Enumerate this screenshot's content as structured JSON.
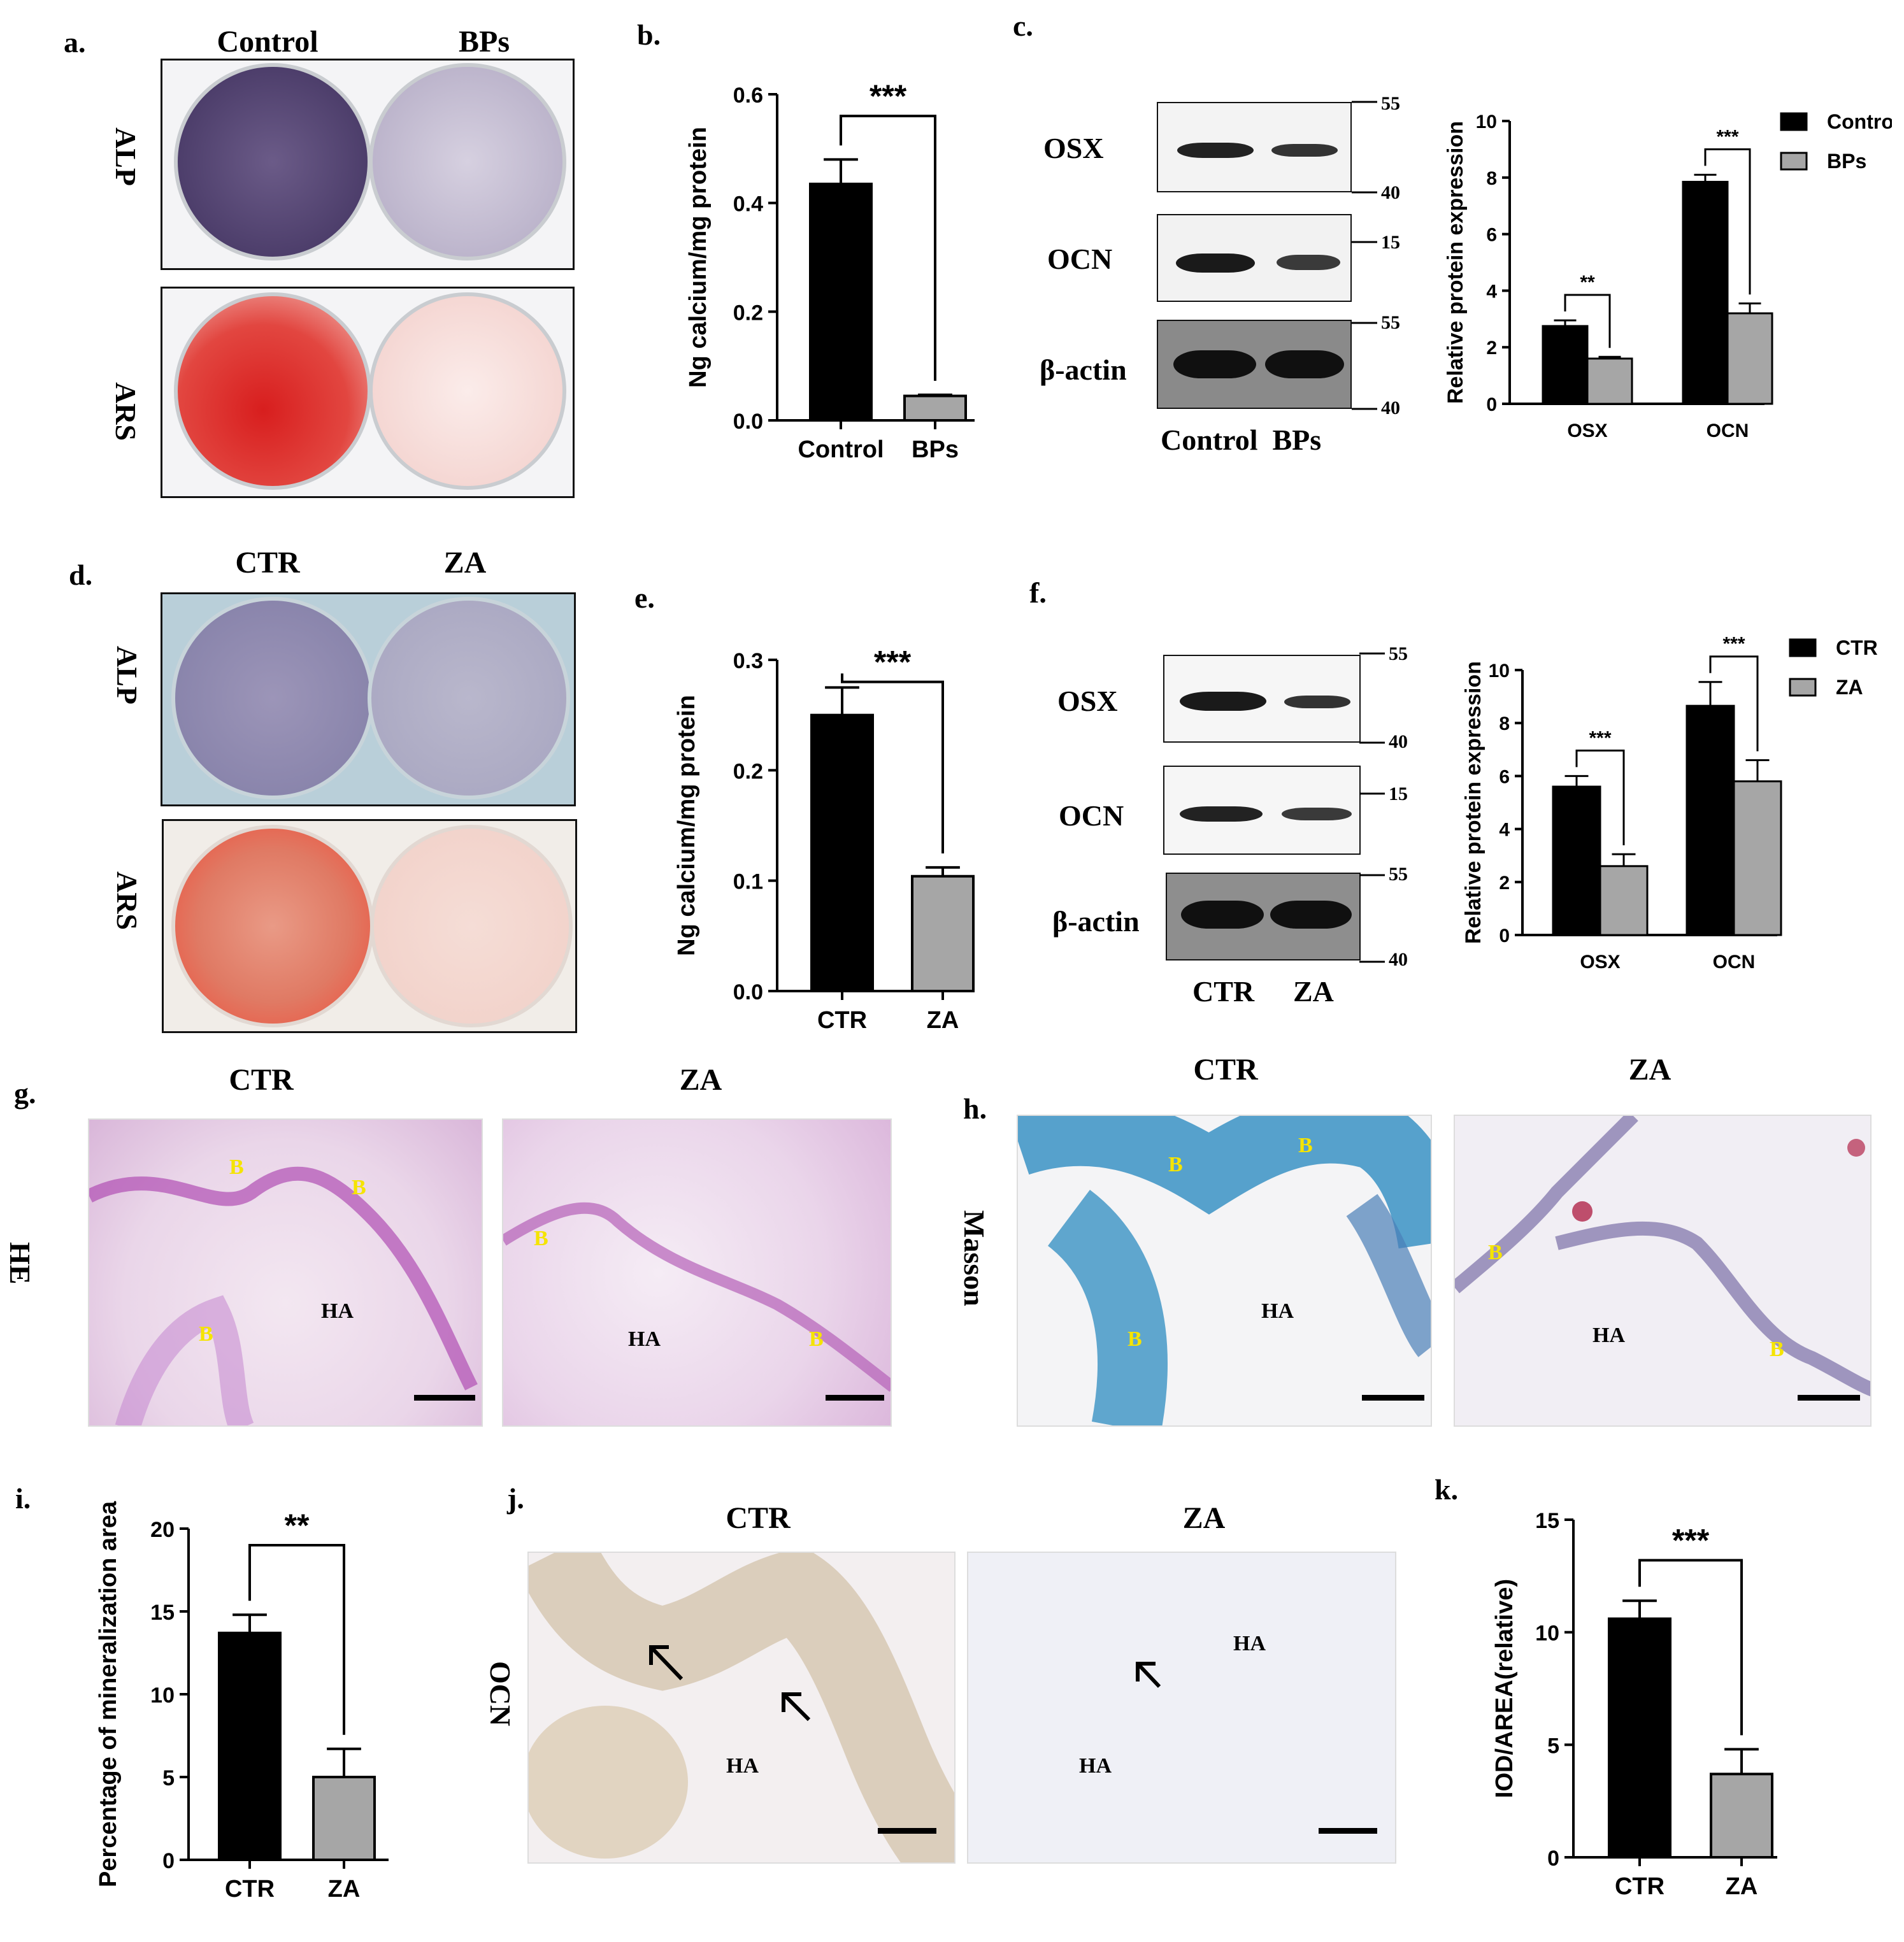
{
  "panel_labels": {
    "a": "a.",
    "b": "b.",
    "c": "c.",
    "d": "d.",
    "e": "e.",
    "f": "f.",
    "g": "g.",
    "h": "h.",
    "i": "i.",
    "j": "j.",
    "k": "k."
  },
  "panel_a": {
    "col1": "Control",
    "col2": "BPs",
    "row1": "ALP",
    "row2": "ARS"
  },
  "panel_c_blot": {
    "rows": [
      "OSX",
      "OCN",
      "β-actin"
    ],
    "markers": [
      "55",
      "40",
      "15",
      "55",
      "40"
    ],
    "lanes_label": "Control  BPs"
  },
  "panel_d": {
    "col1": "CTR",
    "col2": "ZA",
    "row1": "ALP",
    "row2": "ARS"
  },
  "panel_f_blot": {
    "rows": [
      "OSX",
      "OCN",
      "β-actin"
    ],
    "markers": [
      "55",
      "40",
      "15",
      "55",
      "40"
    ],
    "lane1": "CTR",
    "lane2": "ZA"
  },
  "panel_g": {
    "col1": "CTR",
    "col2": "ZA",
    "side": "HE",
    "marks": {
      "b": "B",
      "ha": "HA"
    }
  },
  "panel_h": {
    "col1": "CTR",
    "col2": "ZA",
    "side": "Masson"
  },
  "panel_j": {
    "col1": "CTR",
    "col2": "ZA",
    "side": "OCN"
  },
  "colors": {
    "black_bar": "#000000",
    "gray_bar": "#a6a6a6",
    "alp_purple": "#5a4a78",
    "ars_red": "#d8322e"
  },
  "chart_data": [
    {
      "panel": "b",
      "type": "bar",
      "categories": [
        "Control",
        "BPs"
      ],
      "values": [
        0.435,
        0.045
      ],
      "errors": [
        0.045,
        0.002
      ],
      "ylabel": "Ng calcium/mg protein",
      "ylim": [
        0,
        0.6
      ],
      "yticks": [
        "0.0",
        "0.2",
        "0.4",
        "0.6"
      ],
      "significance": "***"
    },
    {
      "panel": "c",
      "type": "bar",
      "categories": [
        "OSX",
        "OCN"
      ],
      "series": [
        {
          "name": "Control",
          "values": [
            2.75,
            7.85
          ],
          "errors": [
            0.2,
            0.25
          ]
        },
        {
          "name": "BPs",
          "values": [
            1.6,
            3.2
          ],
          "errors": [
            0.06,
            0.35
          ]
        }
      ],
      "ylabel": "Relative protein expression",
      "ylim": [
        0,
        10
      ],
      "yticks": [
        "0",
        "2",
        "4",
        "6",
        "8",
        "10"
      ],
      "significance": [
        "**",
        "***"
      ],
      "legend": "top-right"
    },
    {
      "panel": "e",
      "type": "bar",
      "categories": [
        "CTR",
        "ZA"
      ],
      "values": [
        0.25,
        0.104
      ],
      "errors": [
        0.025,
        0.008
      ],
      "ylabel": "Ng calcium/mg protein",
      "ylim": [
        0,
        0.3
      ],
      "yticks": [
        "0.0",
        "0.1",
        "0.2",
        "0.3"
      ],
      "significance": "***"
    },
    {
      "panel": "f",
      "type": "bar",
      "categories": [
        "OSX",
        "OCN"
      ],
      "series": [
        {
          "name": "CTR",
          "values": [
            5.6,
            8.65
          ],
          "errors": [
            0.4,
            0.9
          ]
        },
        {
          "name": "ZA",
          "values": [
            2.6,
            5.8
          ],
          "errors": [
            0.45,
            0.8
          ]
        }
      ],
      "ylabel": "Relative protein expression",
      "ylim": [
        0,
        10
      ],
      "yticks": [
        "0",
        "2",
        "4",
        "6",
        "8",
        "10"
      ],
      "significance": [
        "***",
        "***"
      ],
      "legend": "top-right"
    },
    {
      "panel": "i",
      "type": "bar",
      "categories": [
        "CTR",
        "ZA"
      ],
      "values": [
        13.7,
        5.0
      ],
      "errors": [
        1.1,
        1.7
      ],
      "ylabel": "Percentage of mineralization area",
      "ylim": [
        0,
        20
      ],
      "yticks": [
        "0",
        "5",
        "10",
        "15",
        "20"
      ],
      "significance": "**"
    },
    {
      "panel": "k",
      "type": "bar",
      "categories": [
        "CTR",
        "ZA"
      ],
      "values": [
        10.6,
        3.7
      ],
      "errors": [
        0.8,
        1.1
      ],
      "ylabel": "IOD/AREA(relative)",
      "ylim": [
        0,
        15
      ],
      "yticks": [
        "0",
        "5",
        "10",
        "15"
      ],
      "significance": "***"
    }
  ]
}
